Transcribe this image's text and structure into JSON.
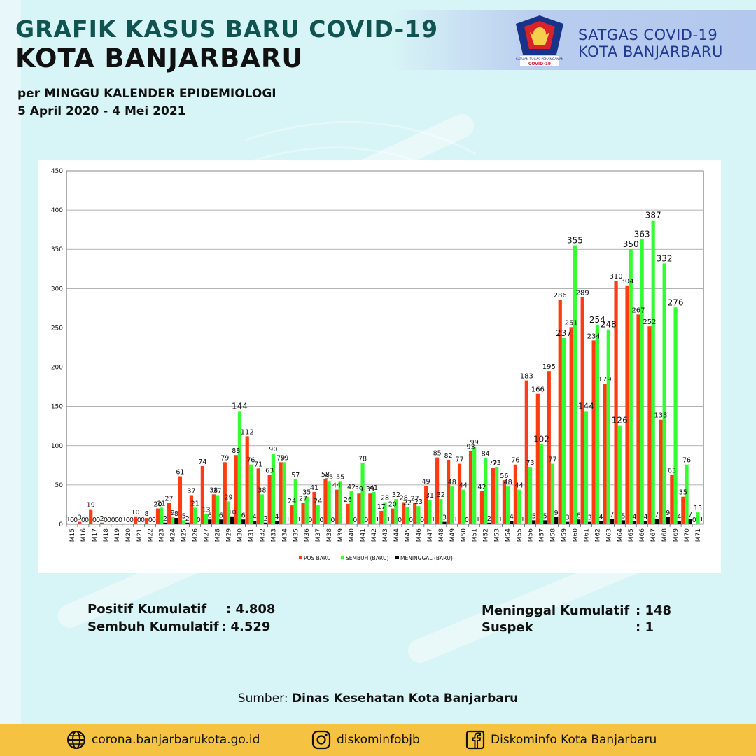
{
  "header": {
    "title_line1": "GRAFIK KASUS BARU COVID-19",
    "title_line2": "KOTA BANJARBARU",
    "subtitle_line1": "per MINGGU KALENDER EPIDEMIOLOGI",
    "subtitle_line2": "5 April 2020 - 4 Mei 2021",
    "org_line1": "SATGAS COVID-19",
    "org_line2": "KOTA BANJARBARU",
    "logo_text": "SATUAN TUGAS PENANGANAN COVID-19"
  },
  "chart_data": {
    "type": "bar",
    "title": "",
    "xlabel": "",
    "ylabel": "",
    "ylim": [
      0,
      450
    ],
    "yticks": [
      0,
      50,
      100,
      150,
      200,
      250,
      300,
      350,
      400,
      450
    ],
    "grid": true,
    "legend_position": "bottom",
    "categories": [
      "M15",
      "M16",
      "M17",
      "M18",
      "M19",
      "M20",
      "M21",
      "M22",
      "M23",
      "M24",
      "M25",
      "M26",
      "M27",
      "M28",
      "M29",
      "M30",
      "M31",
      "M32",
      "M33",
      "M34",
      "M35",
      "M36",
      "M37",
      "M38",
      "M39",
      "M40",
      "M41",
      "M42",
      "M43",
      "M44",
      "M45",
      "M46",
      "M47",
      "M48",
      "M49",
      "M50",
      "M51",
      "M52",
      "M53",
      "M54",
      "M55",
      "M56",
      "M57",
      "M58",
      "M59",
      "M60",
      "M61",
      "M62",
      "M63",
      "M64",
      "M65",
      "M66",
      "M67",
      "M68",
      "M69",
      "M70",
      "M71"
    ],
    "series": [
      {
        "name": "POS BARU",
        "color": "#ff3b10",
        "values": [
          1,
          3,
          19,
          2,
          0,
          1,
          10,
          8,
          20,
          27,
          61,
          37,
          74,
          38,
          79,
          88,
          112,
          71,
          63,
          79,
          24,
          27,
          41,
          58,
          44,
          26,
          39,
          39,
          17,
          20,
          28,
          27,
          49,
          85,
          82,
          77,
          93,
          42,
          72,
          56,
          76,
          183,
          166,
          195,
          286,
          251,
          289,
          234,
          179,
          310,
          304,
          267,
          252,
          133,
          63,
          35,
          0
        ]
      },
      {
        "name": "SEMBUH (BARU)",
        "color": "#33ff33",
        "values": [
          0,
          0,
          0,
          0,
          0,
          0,
          0,
          0,
          21,
          9,
          5,
          21,
          13,
          37,
          29,
          144,
          76,
          38,
          90,
          79,
          57,
          35,
          24,
          55,
          55,
          42,
          78,
          41,
          28,
          32,
          22,
          23,
          31,
          32,
          48,
          44,
          99,
          84,
          73,
          48,
          44,
          73,
          102,
          77,
          237,
          355,
          144,
          254,
          248,
          126,
          350,
          363,
          387,
          332,
          276,
          76,
          15
        ]
      },
      {
        "name": "MENINGGAL (BARU)",
        "color": "#000000",
        "values": [
          0,
          0,
          0,
          0,
          0,
          0,
          0,
          0,
          2,
          8,
          2,
          0,
          6,
          6,
          10,
          6,
          4,
          2,
          4,
          1,
          1,
          0,
          0,
          0,
          1,
          0,
          0,
          1,
          1,
          0,
          0,
          0,
          1,
          3,
          1,
          0,
          1,
          2,
          1,
          4,
          1,
          5,
          5,
          9,
          3,
          6,
          3,
          4,
          7,
          5,
          4,
          4,
          7,
          9,
          4,
          7,
          1
        ]
      }
    ]
  },
  "stats": {
    "positif_label": "Positif Kumulatif",
    "positif_value": ": 4.808",
    "sembuh_label": "Sembuh Kumulatif",
    "sembuh_value": ": 4.529",
    "meninggal_label": "Meninggal Kumulatif",
    "meninggal_value": ":  148",
    "suspek_label": "Suspek",
    "suspek_value": ":  1"
  },
  "source": {
    "prefix": "Sumber:",
    "name": "Dinas Kesehatan Kota Banjarbaru"
  },
  "footer": {
    "website": "corona.banjarbarukota.go.id",
    "instagram": "diskominfobjb",
    "facebook": "Diskominfo Kota Banjarbaru",
    "bg_color": "#f5c242"
  }
}
